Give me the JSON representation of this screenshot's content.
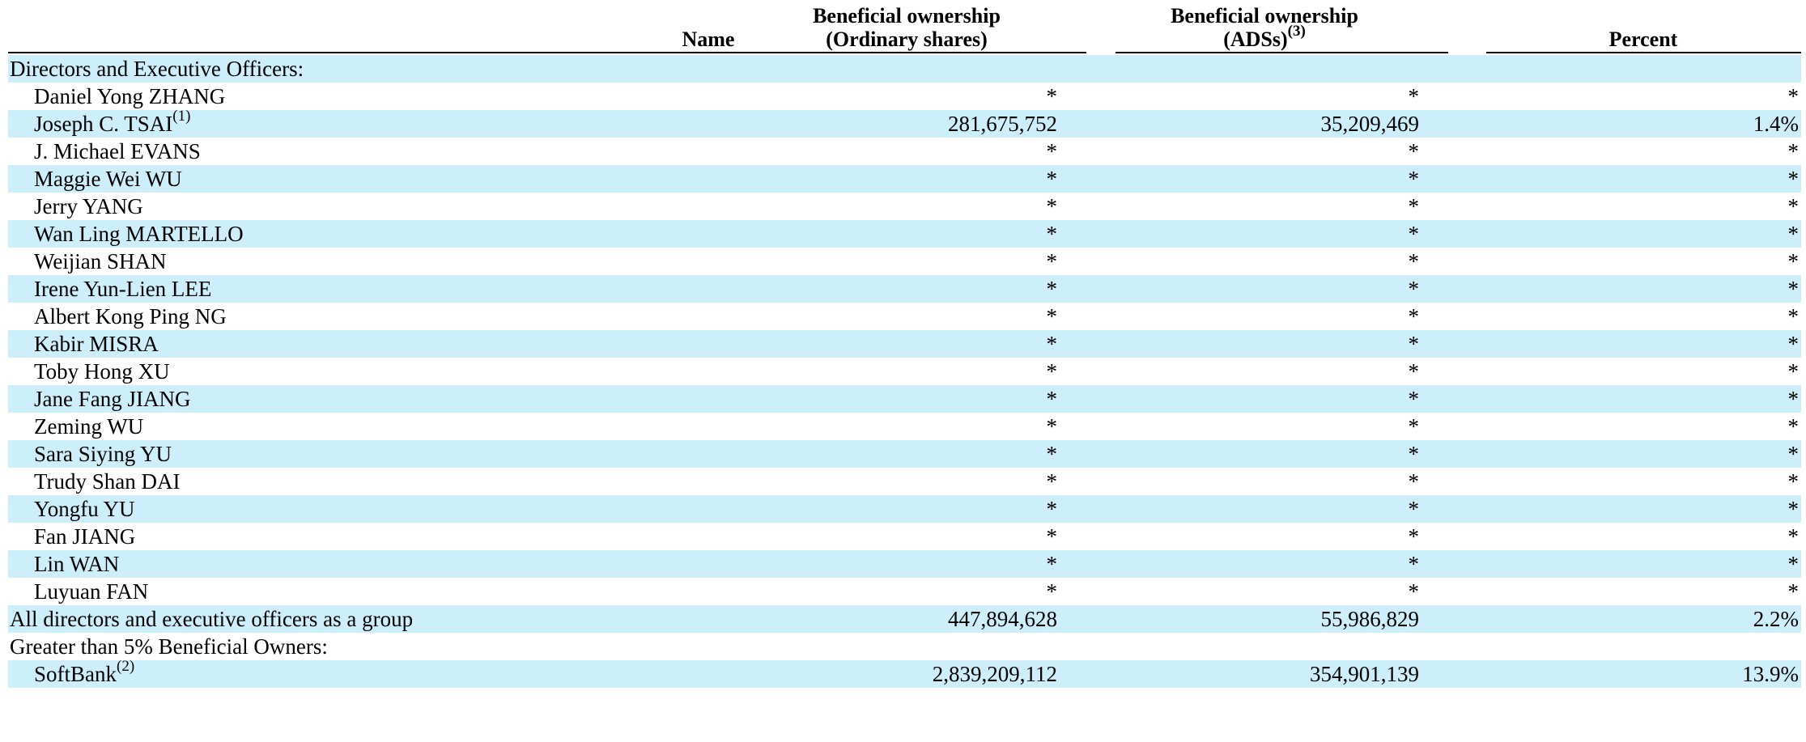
{
  "header": {
    "name": "Name",
    "ordinary_line1": "Beneficial ownership",
    "ordinary_line2": "(Ordinary shares)",
    "ads_line1": "Beneficial ownership",
    "ads_line2": "(ADSs)",
    "ads_footnote": "(3)",
    "percent": "Percent"
  },
  "shade_color": "#cdeefb",
  "rows": [
    {
      "type": "section",
      "name": "Directors and Executive Officers:"
    },
    {
      "type": "person",
      "name": "Daniel Yong ZHANG",
      "ordinary": "*",
      "ads": "*",
      "percent": "*"
    },
    {
      "type": "person",
      "name": "Joseph C. TSAI",
      "footnote": "(1)",
      "ordinary": "281,675,752",
      "ads": "35,209,469",
      "percent": "1.4%"
    },
    {
      "type": "person",
      "name": "J. Michael EVANS",
      "ordinary": "*",
      "ads": "*",
      "percent": "*"
    },
    {
      "type": "person",
      "name": "Maggie Wei WU",
      "ordinary": "*",
      "ads": "*",
      "percent": "*"
    },
    {
      "type": "person",
      "name": "Jerry YANG",
      "ordinary": "*",
      "ads": "*",
      "percent": "*"
    },
    {
      "type": "person",
      "name": "Wan Ling MARTELLO",
      "ordinary": "*",
      "ads": "*",
      "percent": "*"
    },
    {
      "type": "person",
      "name": "Weijian SHAN",
      "ordinary": "*",
      "ads": "*",
      "percent": "*"
    },
    {
      "type": "person",
      "name": "Irene Yun-Lien LEE",
      "ordinary": "*",
      "ads": "*",
      "percent": "*"
    },
    {
      "type": "person",
      "name": "Albert Kong Ping NG",
      "ordinary": "*",
      "ads": "*",
      "percent": "*"
    },
    {
      "type": "person",
      "name": "Kabir MISRA",
      "ordinary": "*",
      "ads": "*",
      "percent": "*"
    },
    {
      "type": "person",
      "name": "Toby Hong XU",
      "ordinary": "*",
      "ads": "*",
      "percent": "*"
    },
    {
      "type": "person",
      "name": "Jane Fang JIANG",
      "ordinary": "*",
      "ads": "*",
      "percent": "*"
    },
    {
      "type": "person",
      "name": "Zeming WU",
      "ordinary": "*",
      "ads": "*",
      "percent": "*"
    },
    {
      "type": "person",
      "name": "Sara Siying YU",
      "ordinary": "*",
      "ads": "*",
      "percent": "*"
    },
    {
      "type": "person",
      "name": "Trudy Shan DAI",
      "ordinary": "*",
      "ads": "*",
      "percent": "*"
    },
    {
      "type": "person",
      "name": "Yongfu YU",
      "ordinary": "*",
      "ads": "*",
      "percent": "*"
    },
    {
      "type": "person",
      "name": "Fan JIANG",
      "ordinary": "*",
      "ads": "*",
      "percent": "*"
    },
    {
      "type": "person",
      "name": "Lin WAN",
      "ordinary": "*",
      "ads": "*",
      "percent": "*"
    },
    {
      "type": "person",
      "name": "Luyuan FAN",
      "ordinary": "*",
      "ads": "*",
      "percent": "*"
    },
    {
      "type": "total",
      "name": "All directors and executive officers as a group",
      "ordinary": "447,894,628",
      "ads": "55,986,829",
      "percent": "2.2%"
    },
    {
      "type": "section",
      "name": "Greater than 5% Beneficial Owners:"
    },
    {
      "type": "person",
      "name": "SoftBank",
      "footnote": "(2)",
      "ordinary": "2,839,209,112",
      "ads": "354,901,139",
      "percent": "13.9%"
    }
  ]
}
